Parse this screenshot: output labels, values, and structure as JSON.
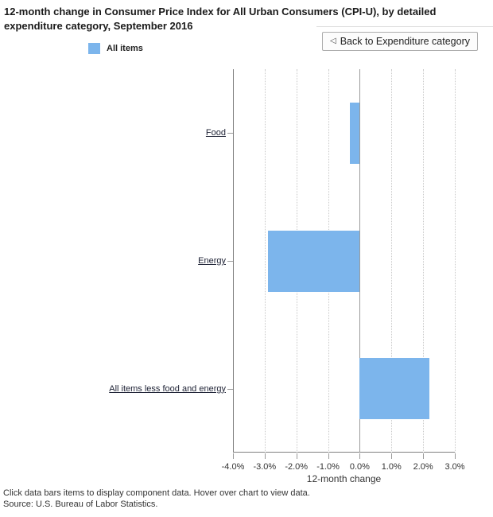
{
  "header": {
    "title": "12-month change in Consumer Price Index for All Urban Consumers (CPI-U), by detailed expenditure category, September 2016",
    "back_button": {
      "arrow": "◁",
      "label": "Back to Expenditure category"
    }
  },
  "legend": {
    "items": [
      {
        "label": "All items",
        "color": "#7cb5ec"
      }
    ]
  },
  "chart_data": {
    "type": "bar",
    "orientation": "horizontal",
    "title": "12-month change in Consumer Price Index for All Urban Consumers (CPI-U), by detailed expenditure category, September 2016",
    "categories": [
      "Food",
      "Energy",
      "All items less food and energy"
    ],
    "series": [
      {
        "name": "All items",
        "color": "#7cb5ec",
        "values": [
          -0.3,
          -2.9,
          2.2
        ]
      }
    ],
    "xlabel": "12-month change",
    "xlim": [
      -4,
      3
    ],
    "x_ticks": [
      -4,
      -3,
      -2,
      -1,
      0,
      1,
      2,
      3
    ],
    "x_tick_labels": [
      "-4.0%",
      "-3.0%",
      "-2.0%",
      "-1.0%",
      "0.0%",
      "1.0%",
      "2.0%",
      "3.0%"
    ],
    "grid": "vertical-dotted",
    "zero_line": true,
    "legend_position": "top-left",
    "category_labels_linked": true
  },
  "footer": {
    "note": "Click data bars items to display component data. Hover over chart to view data.",
    "source": "Source: U.S. Bureau of Labor Statistics."
  }
}
